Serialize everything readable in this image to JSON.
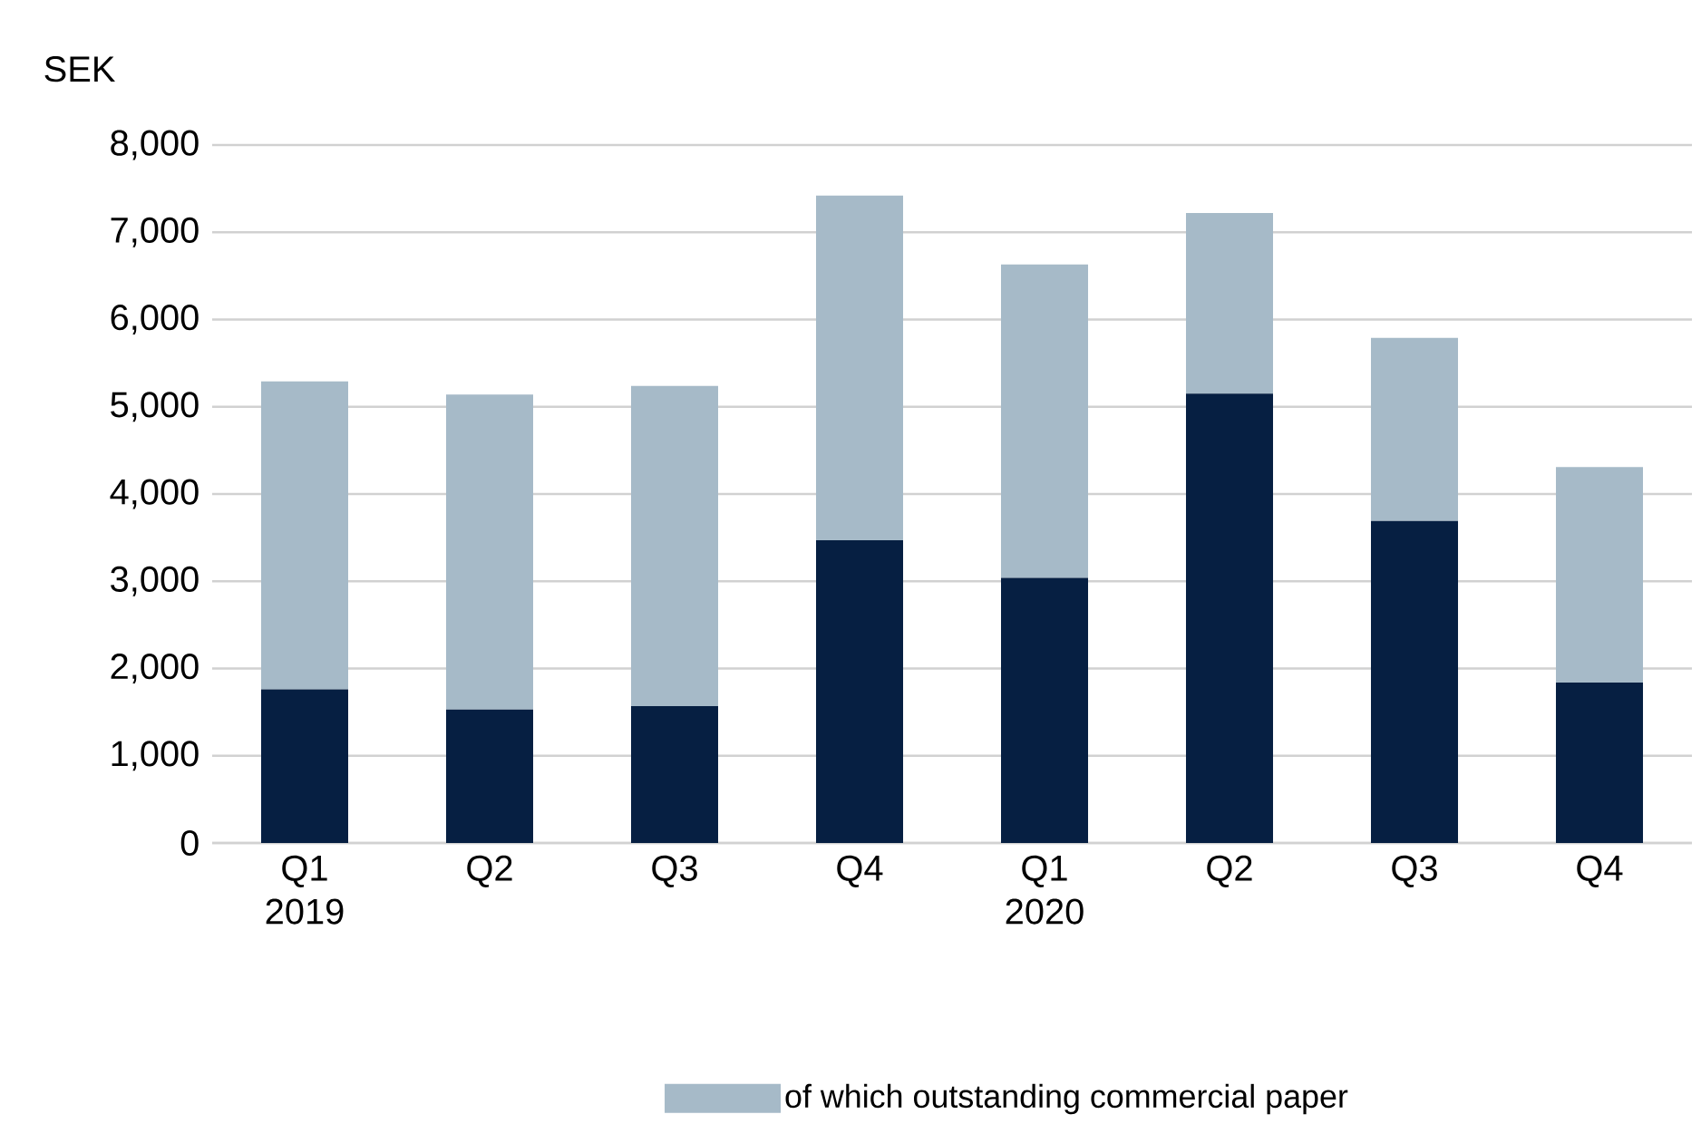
{
  "chart_data": {
    "type": "bar",
    "stacked": true,
    "ylabel": "SEK",
    "categories": [
      "Q1 2019",
      "Q2",
      "Q3",
      "Q4",
      "Q1 2020",
      "Q2",
      "Q3",
      "Q4"
    ],
    "series": [
      {
        "color": "#061f42",
        "values": [
          1760,
          1530,
          1570,
          3470,
          3040,
          5150,
          3690,
          1840
        ]
      },
      {
        "name": "of which outstanding commercial paper",
        "color": "#a6bac8",
        "values": [
          3530,
          3610,
          3670,
          3950,
          3590,
          2070,
          2100,
          2470
        ]
      }
    ],
    "ylim": [
      0,
      8000
    ],
    "yticks": [
      {
        "value": 0,
        "label": "0"
      },
      {
        "value": 1000,
        "label": "1,000"
      },
      {
        "value": 2000,
        "label": "2,000"
      },
      {
        "value": 3000,
        "label": "3,000"
      },
      {
        "value": 4000,
        "label": "4,000"
      },
      {
        "value": 5000,
        "label": "5,000"
      },
      {
        "value": 6000,
        "label": "6,000"
      },
      {
        "value": 7000,
        "label": "7,000"
      },
      {
        "value": 8000,
        "label": "8,000"
      }
    ],
    "grid": "y",
    "legend": "bottom"
  }
}
